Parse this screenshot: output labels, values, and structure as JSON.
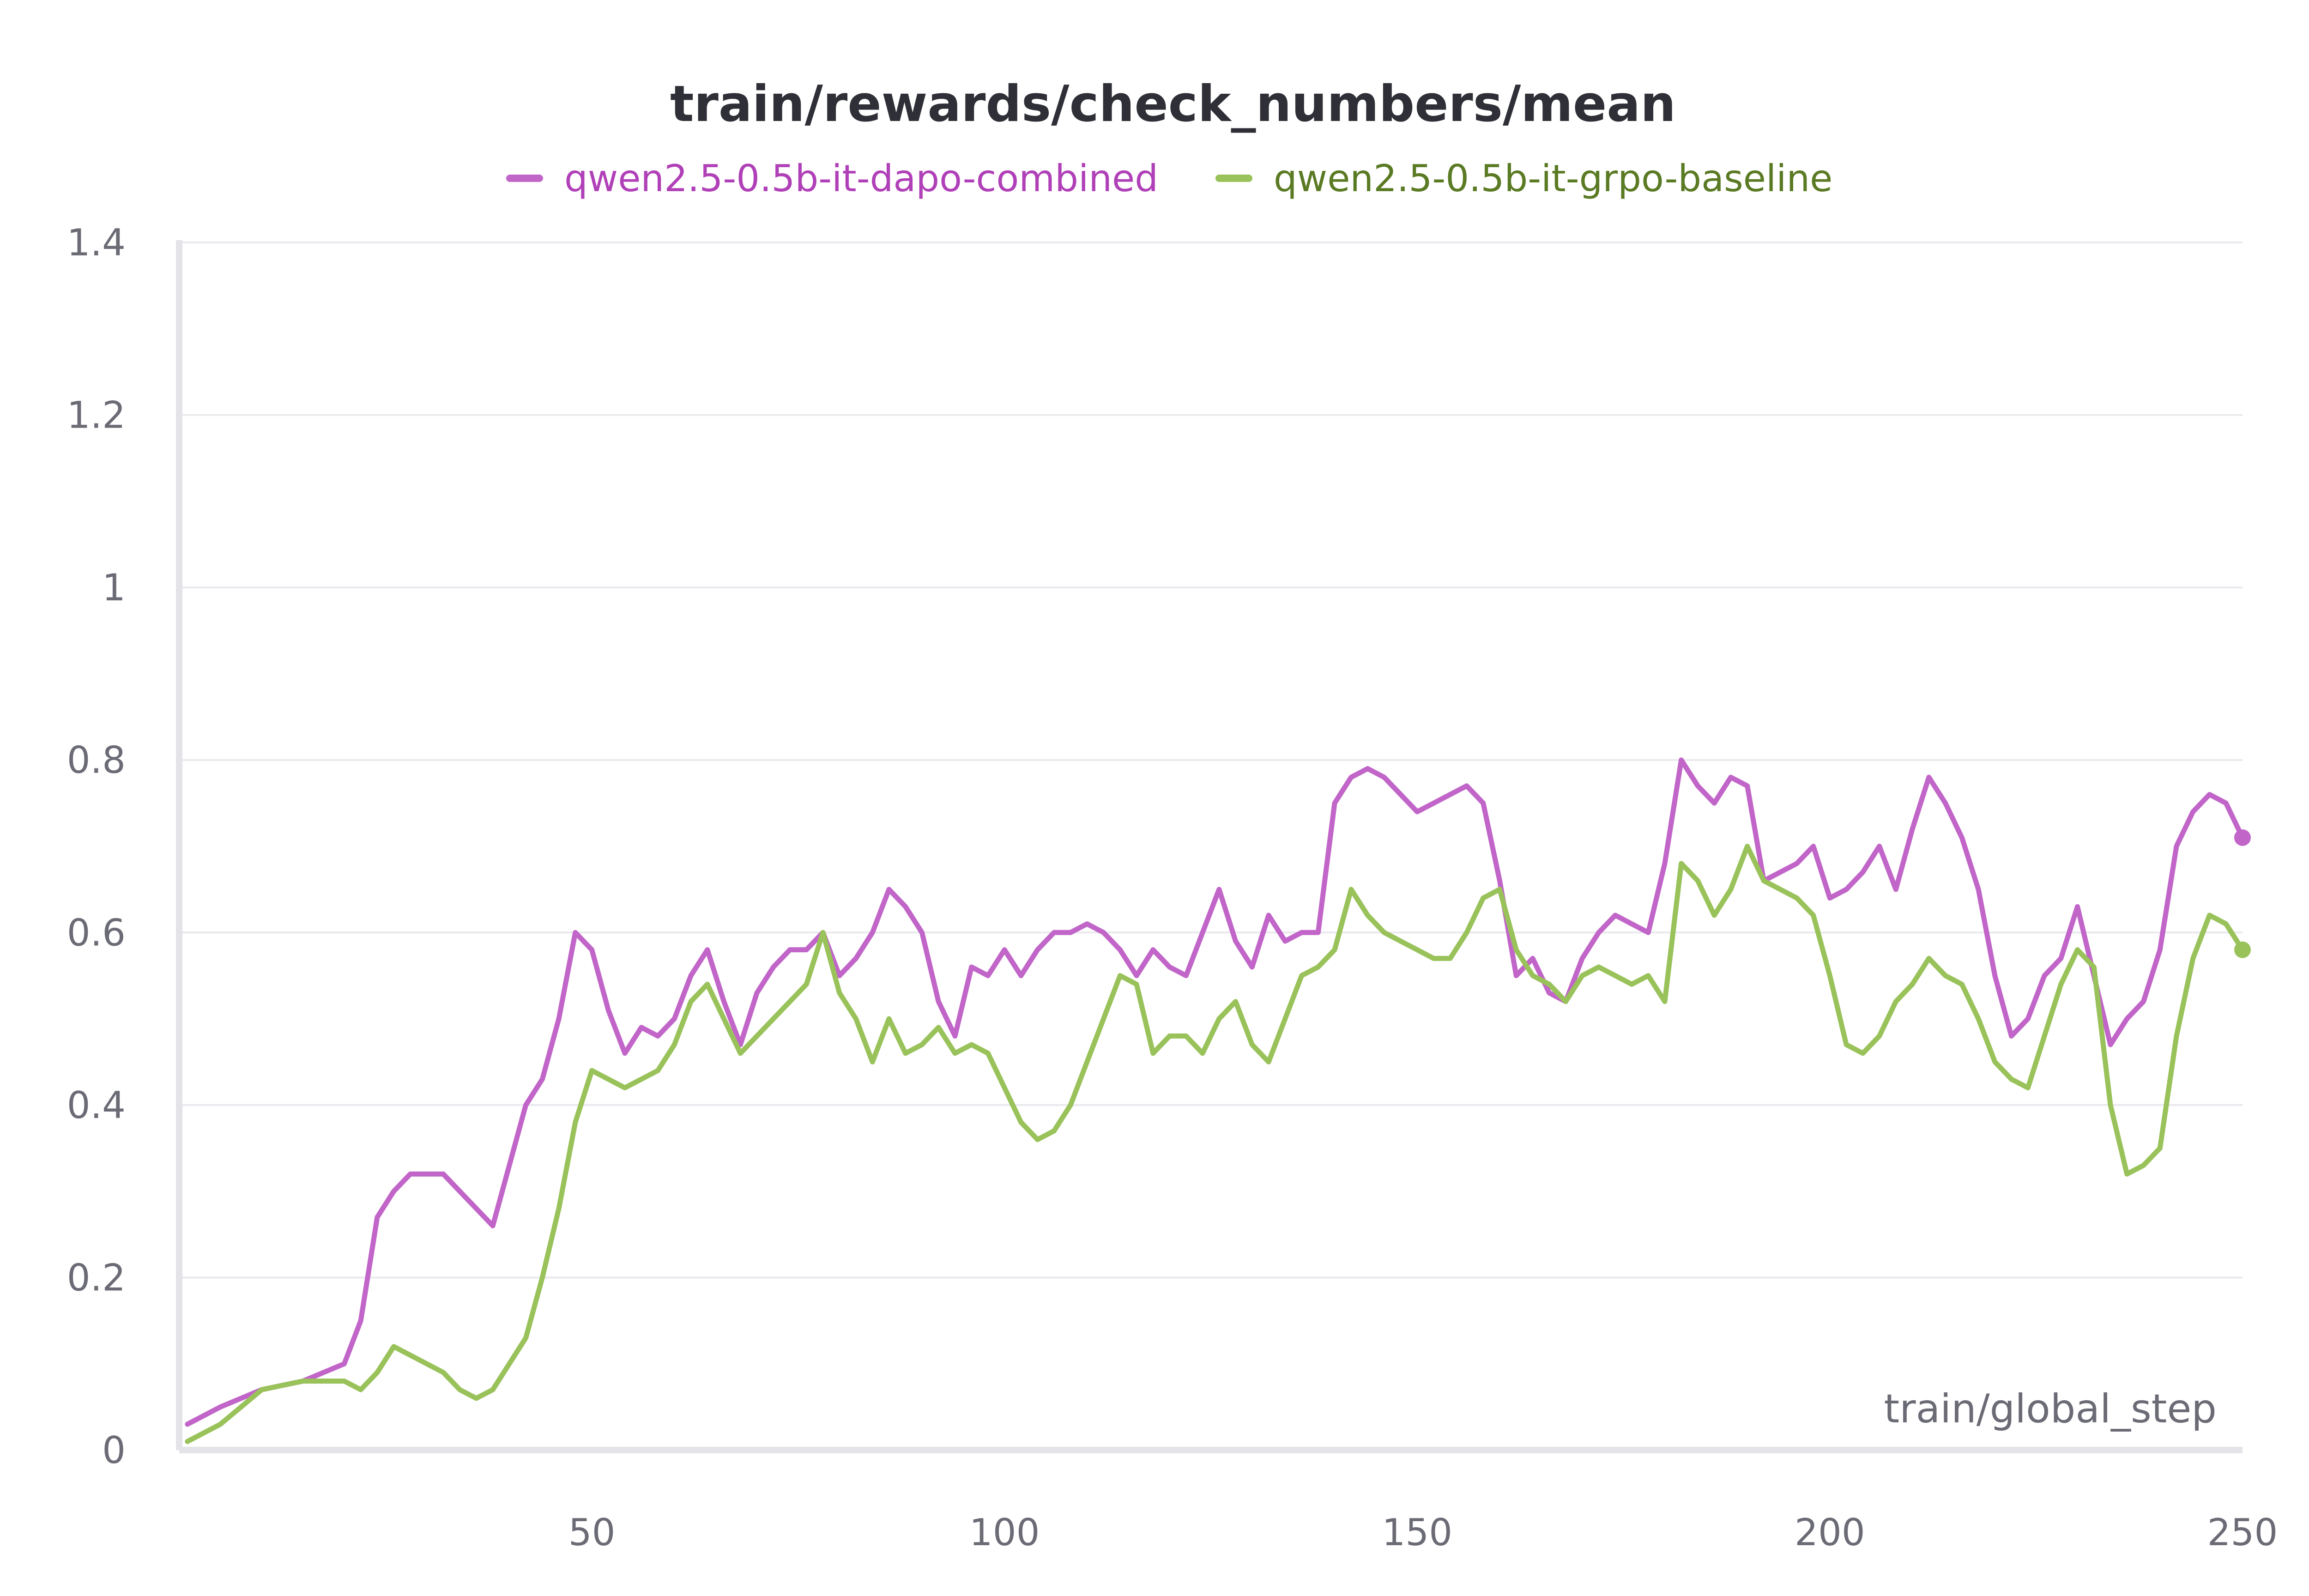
{
  "chart_data": {
    "type": "line",
    "title": "train/rewards/check_numbers/mean",
    "xlabel": "train/global_step",
    "ylabel": "",
    "xlim": [
      0,
      250
    ],
    "ylim": [
      0,
      1.4
    ],
    "x_ticks": [
      "50",
      "100",
      "150",
      "200",
      "250"
    ],
    "y_ticks": [
      "0",
      "0.2",
      "0.4",
      "0.6",
      "0.8",
      "1",
      "1.2",
      "1.4"
    ],
    "grid": true,
    "legend_position": "top-center",
    "colors": {
      "dapo": "#c165c9",
      "grpo": "#99c25a",
      "dapo_legend_text": "#b040b8",
      "grpo_legend_text": "#5a7a23"
    },
    "series": [
      {
        "name": "qwen2.5-0.5b-it-dapo-combined",
        "x": [
          1,
          5,
          10,
          15,
          20,
          22,
          24,
          26,
          28,
          30,
          32,
          34,
          36,
          38,
          40,
          42,
          44,
          46,
          48,
          50,
          52,
          54,
          56,
          58,
          60,
          62,
          64,
          66,
          68,
          70,
          72,
          74,
          76,
          78,
          80,
          82,
          84,
          86,
          88,
          90,
          92,
          94,
          96,
          98,
          100,
          102,
          104,
          106,
          108,
          110,
          112,
          114,
          116,
          118,
          120,
          122,
          124,
          126,
          128,
          130,
          132,
          134,
          136,
          138,
          140,
          142,
          144,
          146,
          148,
          150,
          152,
          154,
          156,
          158,
          160,
          162,
          164,
          166,
          168,
          170,
          172,
          174,
          176,
          178,
          180,
          182,
          184,
          186,
          188,
          190,
          192,
          194,
          196,
          198,
          200,
          202,
          204,
          206,
          208,
          210,
          212,
          214,
          216,
          218,
          220,
          222,
          224,
          226,
          228,
          230,
          232,
          234,
          236,
          238,
          240,
          242,
          244,
          246,
          248,
          250
        ],
        "values": [
          0.03,
          0.05,
          0.07,
          0.08,
          0.1,
          0.15,
          0.27,
          0.3,
          0.32,
          0.32,
          0.32,
          0.3,
          0.28,
          0.26,
          0.33,
          0.4,
          0.43,
          0.5,
          0.6,
          0.58,
          0.51,
          0.46,
          0.49,
          0.48,
          0.5,
          0.55,
          0.58,
          0.52,
          0.47,
          0.53,
          0.56,
          0.58,
          0.58,
          0.6,
          0.55,
          0.57,
          0.6,
          0.65,
          0.63,
          0.6,
          0.52,
          0.48,
          0.56,
          0.55,
          0.58,
          0.55,
          0.58,
          0.6,
          0.6,
          0.61,
          0.6,
          0.58,
          0.55,
          0.58,
          0.56,
          0.55,
          0.6,
          0.65,
          0.59,
          0.56,
          0.62,
          0.59,
          0.6,
          0.6,
          0.75,
          0.78,
          0.79,
          0.78,
          0.76,
          0.74,
          0.75,
          0.76,
          0.77,
          0.75,
          0.66,
          0.55,
          0.57,
          0.53,
          0.52,
          0.57,
          0.6,
          0.62,
          0.61,
          0.6,
          0.68,
          0.8,
          0.77,
          0.75,
          0.78,
          0.77,
          0.66,
          0.67,
          0.68,
          0.7,
          0.64,
          0.65,
          0.67,
          0.7,
          0.65,
          0.72,
          0.78,
          0.75,
          0.71,
          0.65,
          0.55,
          0.48,
          0.5,
          0.55,
          0.57,
          0.63,
          0.55,
          0.47,
          0.5,
          0.52,
          0.58,
          0.7,
          0.74,
          0.76,
          0.75,
          0.71
        ]
      },
      {
        "name": "qwen2.5-0.5b-it-grpo-baseline",
        "x": [
          1,
          5,
          10,
          15,
          20,
          22,
          24,
          26,
          28,
          30,
          32,
          34,
          36,
          38,
          40,
          42,
          44,
          46,
          48,
          50,
          52,
          54,
          56,
          58,
          60,
          62,
          64,
          66,
          68,
          70,
          72,
          74,
          76,
          78,
          80,
          82,
          84,
          86,
          88,
          90,
          92,
          94,
          96,
          98,
          100,
          102,
          104,
          106,
          108,
          110,
          112,
          114,
          116,
          118,
          120,
          122,
          124,
          126,
          128,
          130,
          132,
          134,
          136,
          138,
          140,
          142,
          144,
          146,
          148,
          150,
          152,
          154,
          156,
          158,
          160,
          162,
          164,
          166,
          168,
          170,
          172,
          174,
          176,
          178,
          180,
          182,
          184,
          186,
          188,
          190,
          192,
          194,
          196,
          198,
          200,
          202,
          204,
          206,
          208,
          210,
          212,
          214,
          216,
          218,
          220,
          222,
          224,
          226,
          228,
          230,
          232,
          234,
          236,
          238,
          240,
          242,
          244,
          246,
          248,
          250
        ],
        "values": [
          0.01,
          0.03,
          0.07,
          0.08,
          0.08,
          0.07,
          0.09,
          0.12,
          0.11,
          0.1,
          0.09,
          0.07,
          0.06,
          0.07,
          0.1,
          0.13,
          0.2,
          0.28,
          0.38,
          0.44,
          0.43,
          0.42,
          0.43,
          0.44,
          0.47,
          0.52,
          0.54,
          0.5,
          0.46,
          0.48,
          0.5,
          0.52,
          0.54,
          0.6,
          0.53,
          0.5,
          0.45,
          0.5,
          0.46,
          0.47,
          0.49,
          0.46,
          0.47,
          0.46,
          0.42,
          0.38,
          0.36,
          0.37,
          0.4,
          0.45,
          0.5,
          0.55,
          0.54,
          0.46,
          0.48,
          0.48,
          0.46,
          0.5,
          0.52,
          0.47,
          0.45,
          0.5,
          0.55,
          0.56,
          0.58,
          0.65,
          0.62,
          0.6,
          0.59,
          0.58,
          0.57,
          0.57,
          0.6,
          0.64,
          0.65,
          0.58,
          0.55,
          0.54,
          0.52,
          0.55,
          0.56,
          0.55,
          0.54,
          0.55,
          0.52,
          0.68,
          0.66,
          0.62,
          0.65,
          0.7,
          0.66,
          0.65,
          0.64,
          0.62,
          0.55,
          0.47,
          0.46,
          0.48,
          0.52,
          0.54,
          0.57,
          0.55,
          0.54,
          0.5,
          0.45,
          0.43,
          0.42,
          0.48,
          0.54,
          0.58,
          0.56,
          0.4,
          0.32,
          0.33,
          0.35,
          0.48,
          0.57,
          0.62,
          0.61,
          0.58
        ]
      }
    ]
  }
}
